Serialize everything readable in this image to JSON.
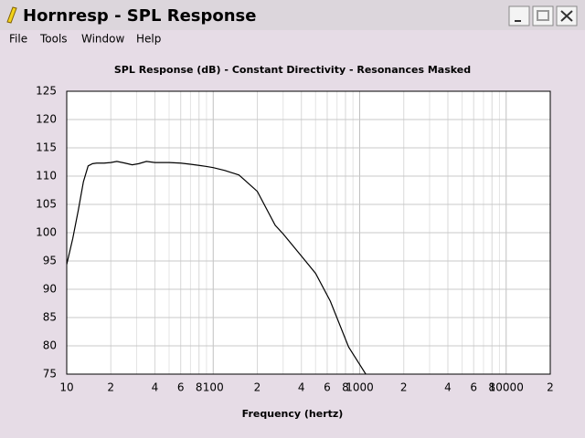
{
  "window": {
    "title": "Hornresp - SPL Response"
  },
  "menu": [
    "File",
    "Tools",
    "Window",
    "Help"
  ],
  "chart_data": {
    "type": "line",
    "title": "SPL Response (dB) - Constant Directivity - Resonances Masked",
    "x_label": "Frequency (hertz)",
    "x": [
      10,
      11,
      12,
      13,
      14,
      15,
      16,
      18,
      20,
      22,
      25,
      28,
      31,
      35,
      40,
      50,
      60,
      70,
      80,
      90,
      100,
      120,
      150,
      200,
      265,
      300,
      408,
      500,
      630,
      840,
      1000,
      1100
    ],
    "values": [
      94.4,
      99,
      104,
      109,
      111.8,
      112.2,
      112.3,
      112.3,
      112.4,
      112.6,
      112.3,
      112.0,
      112.2,
      112.6,
      112.4,
      112.4,
      112.3,
      112.1,
      111.9,
      111.7,
      111.5,
      111.0,
      110.2,
      107.3,
      101.3,
      99.8,
      95.6,
      92.8,
      87.9,
      79.8,
      76.7,
      75
    ],
    "color": "#000000",
    "xscale": "log",
    "xlim": [
      10,
      20000
    ],
    "ylim": [
      75,
      125
    ],
    "xticks": [
      10,
      {
        "value": 20,
        "label": "2"
      },
      {
        "value": 40,
        "label": "4"
      },
      {
        "value": 60,
        "label": "6"
      },
      {
        "value": 80,
        "label": "8"
      },
      100,
      {
        "value": 200,
        "label": "2"
      },
      {
        "value": 400,
        "label": "4"
      },
      {
        "value": 600,
        "label": "6"
      },
      {
        "value": 800,
        "label": "8"
      },
      1000,
      {
        "value": 2000,
        "label": "2"
      },
      {
        "value": 4000,
        "label": "4"
      },
      {
        "value": 6000,
        "label": "6"
      },
      {
        "value": 8000,
        "label": "8"
      },
      10000,
      {
        "value": 20000,
        "label": "2"
      }
    ],
    "xminorticks": [
      30,
      50,
      70,
      90,
      300,
      500,
      700,
      900,
      3000,
      5000,
      7000,
      9000
    ],
    "yticks": [
      75,
      80,
      85,
      90,
      95,
      100,
      105,
      110,
      115,
      120,
      125
    ],
    "grid": true
  }
}
